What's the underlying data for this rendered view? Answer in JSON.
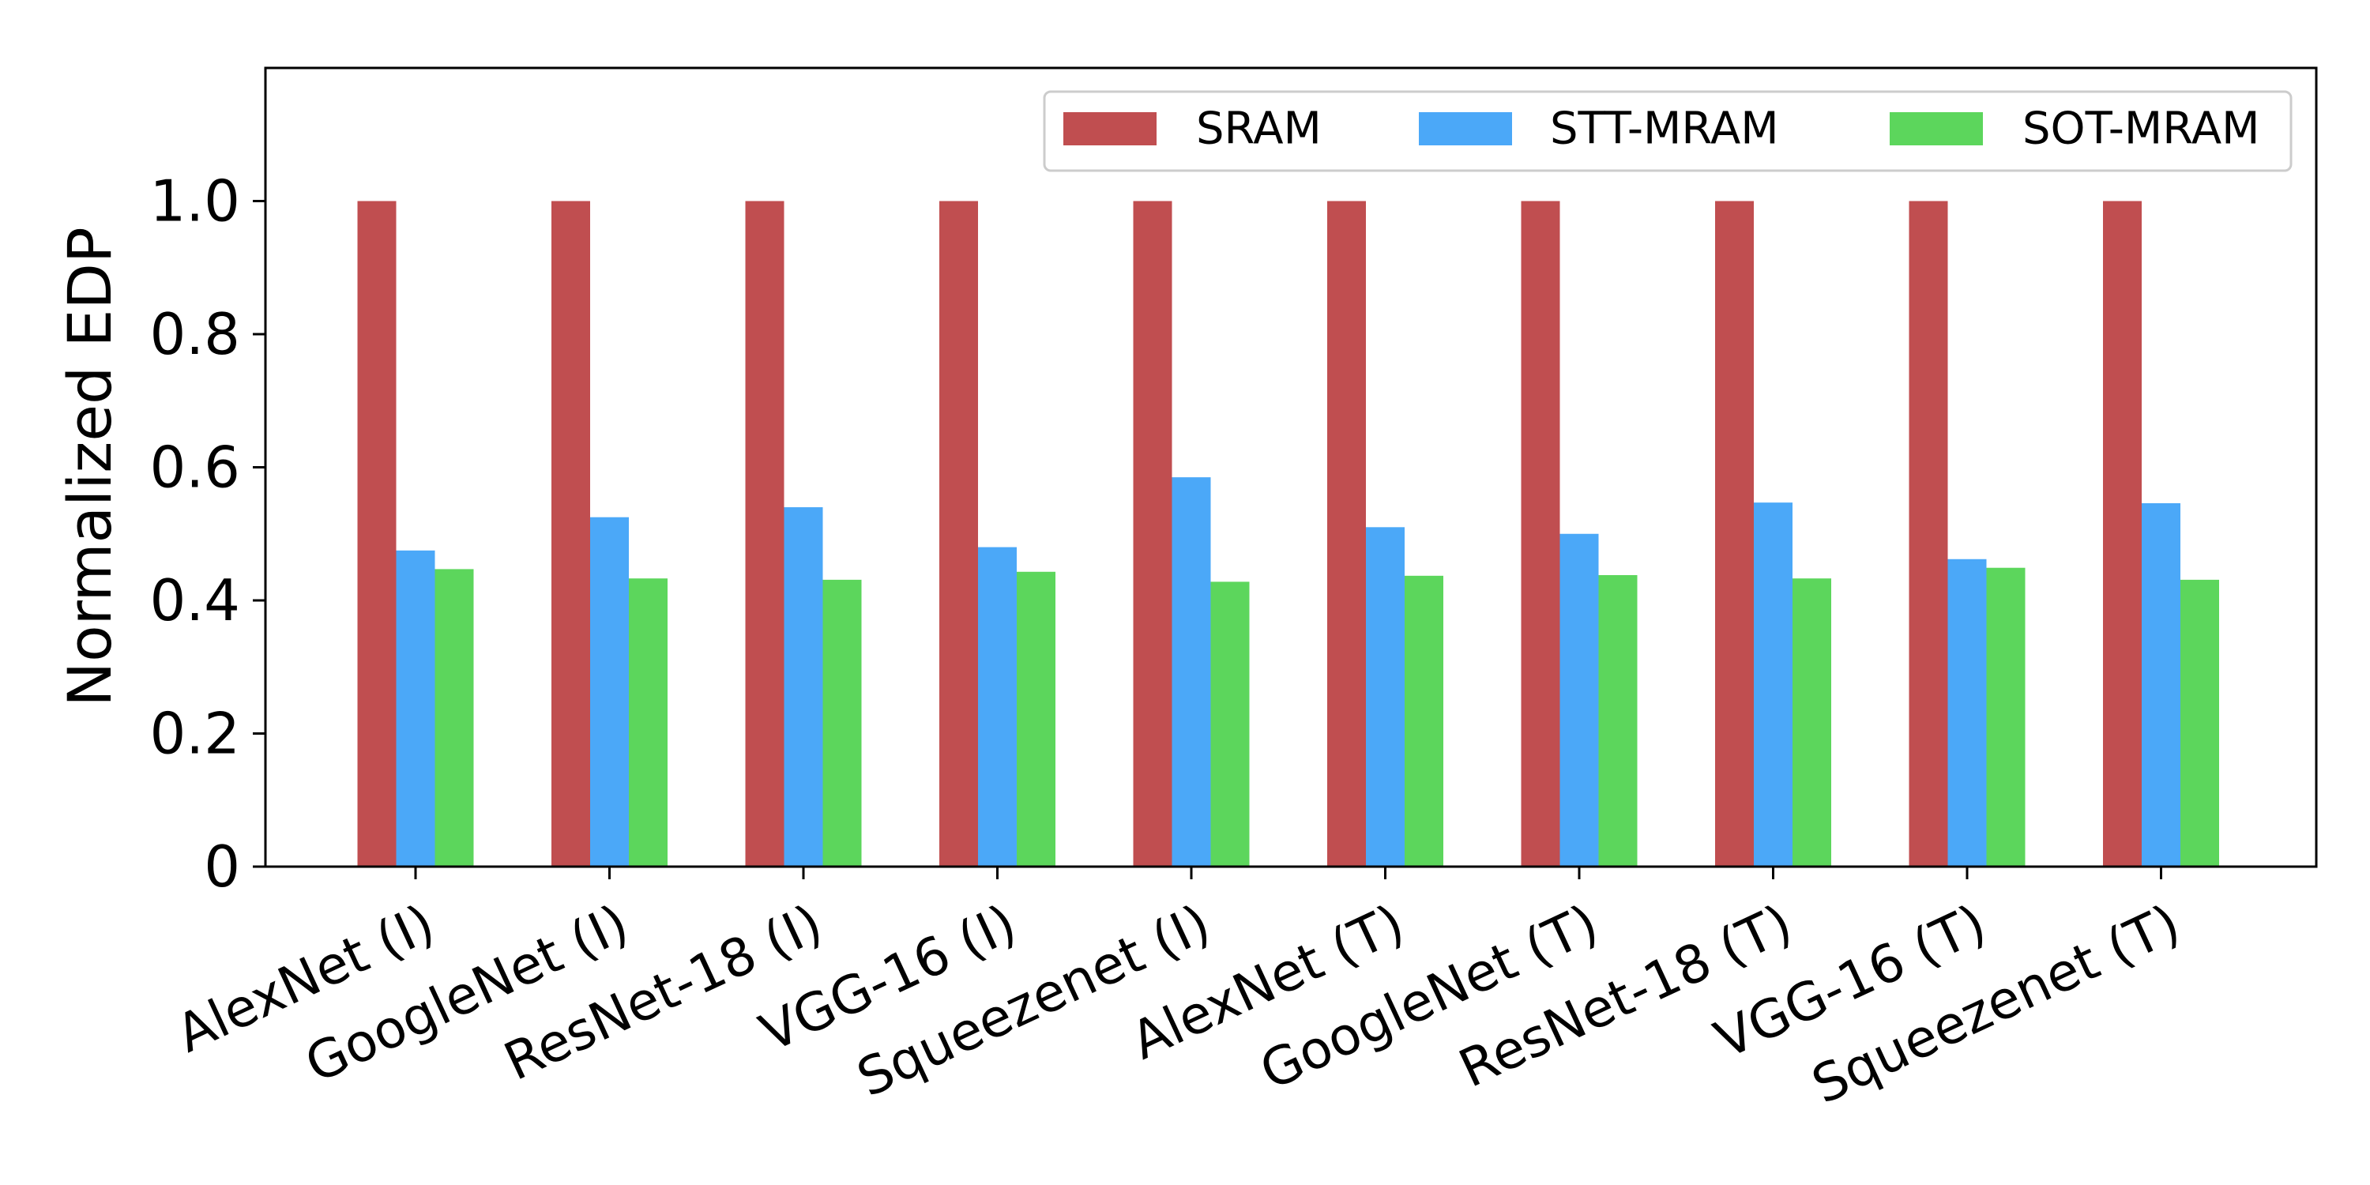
{
  "chart_data": {
    "type": "bar",
    "title": "",
    "xlabel": "",
    "ylabel": "Normalized EDP",
    "ylim": [
      0,
      1.2
    ],
    "yticks": [
      0,
      0.2,
      0.4,
      0.6,
      0.8,
      1.0
    ],
    "ytick_labels": [
      "0",
      "0.2",
      "0.4",
      "0.6",
      "0.8",
      "1.0"
    ],
    "grid": false,
    "legend_position": "top-right",
    "categories": [
      "AlexNet (I)",
      "GoogleNet (I)",
      "ResNet-18 (I)",
      "VGG-16 (I)",
      "Squeezenet (I)",
      "AlexNet (T)",
      "GoogleNet (T)",
      "ResNet-18 (T)",
      "VGG-16 (T)",
      "Squeezenet (T)"
    ],
    "series": [
      {
        "name": "SRAM",
        "color": "#c04e50",
        "values": [
          1.0,
          1.0,
          1.0,
          1.0,
          1.0,
          1.0,
          1.0,
          1.0,
          1.0,
          1.0
        ]
      },
      {
        "name": "STT-MRAM",
        "color": "#4ba8f8",
        "values": [
          0.475,
          0.525,
          0.54,
          0.48,
          0.585,
          0.51,
          0.5,
          0.547,
          0.462,
          0.546
        ]
      },
      {
        "name": "SOT-MRAM",
        "color": "#5cd65c",
        "values": [
          0.447,
          0.433,
          0.431,
          0.443,
          0.428,
          0.437,
          0.438,
          0.433,
          0.449,
          0.431
        ]
      }
    ]
  }
}
